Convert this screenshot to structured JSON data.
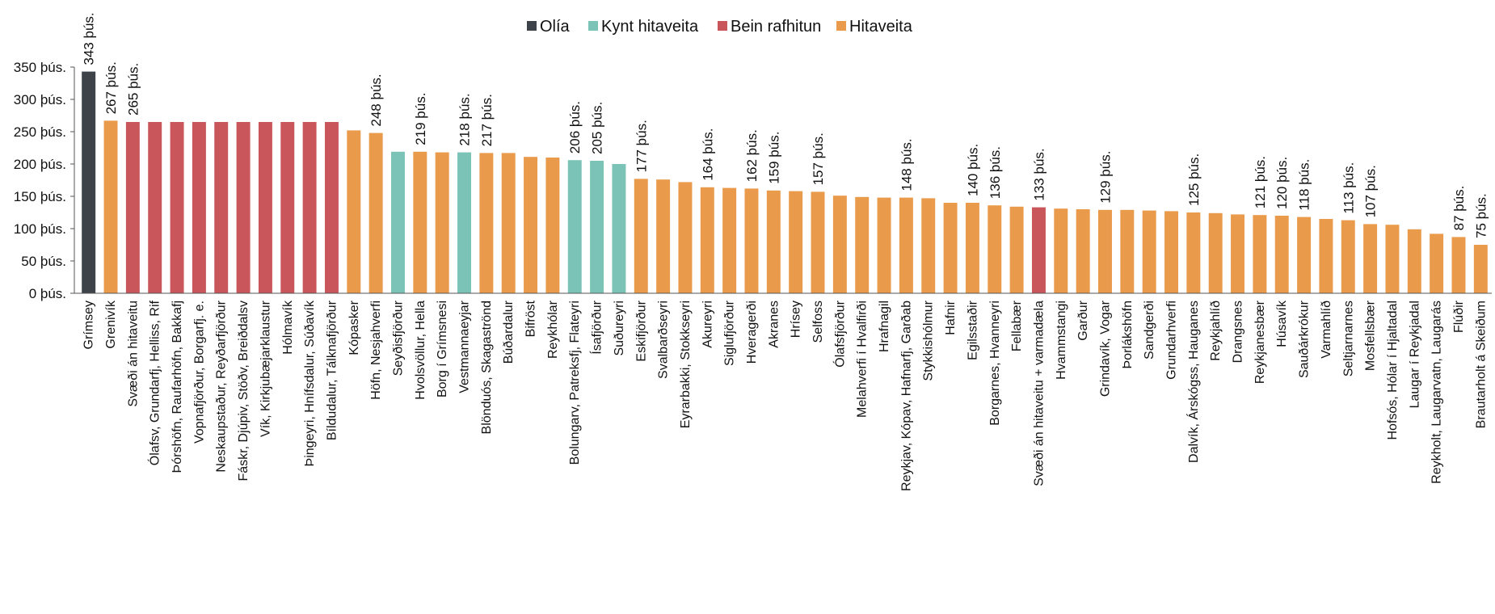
{
  "chart_data": {
    "type": "bar",
    "title": "",
    "xlabel": "",
    "ylabel": "",
    "ylim": [
      0,
      350000
    ],
    "yticks": [
      "0 þús.",
      "50 þús.",
      "100 þús.",
      "150 þús.",
      "200 þús.",
      "250 þús.",
      "300 þús.",
      "350 þús."
    ],
    "grid": false,
    "legend_position": "top-center",
    "legend": [
      {
        "key": "olia",
        "label": "Olía",
        "color": "#3d4349"
      },
      {
        "key": "kynt",
        "label": "Kynt hitaveita",
        "color": "#7cc3b7"
      },
      {
        "key": "bein",
        "label": "Bein rafhitun",
        "color": "#c9565a"
      },
      {
        "key": "hita",
        "label": "Hitaveita",
        "color": "#e99a4b"
      }
    ],
    "categories": [
      "Grímsey",
      "Grenivík",
      "Svæði án hitaveitu",
      "Ólafsv, Grundarfj, Helliss, Rif",
      "Þórshöfn, Raufarhöfn, Bakkafj",
      "Vopnafjörður, Borgarfj. e.",
      "Neskaupstaður, Reyðarfjörður",
      "Fáskr, Djúpiv, Stöðv, Breiðdalsv",
      "Vík, Kirkjubæjarklaustur",
      "Hólmavík",
      "Þingeyri, Hnífsdalur, Súðavík",
      "Bíldudalur, Tálknafjörður",
      "Kópasker",
      "Höfn, Nesjahverfi",
      "Seyðisfjörður",
      "Hvolsvöllur, Hella",
      "Borg í Grímsnesi",
      "Vestmannaeyjar",
      "Blönduós, Skagaströnd",
      "Búðardalur",
      "Bifröst",
      "Reykhólar",
      "Bolungarv, Patreksfj, Flateyri",
      "Ísafjörður",
      "Suðureyri",
      "Eskifjörður",
      "Svalbarðseyri",
      "Eyrarbakki, Stokkseyri",
      "Akureyri",
      "Siglufjörður",
      "Hveragerði",
      "Akranes",
      "Hrísey",
      "Selfoss",
      "Ólafsfjörður",
      "Melahverfi í Hvalfirði",
      "Hrafnagil",
      "Reykjav, Kópav, Hafnarfj, Garðab",
      "Stykkishólmur",
      "Hafnir",
      "Egilsstaðir",
      "Borgarnes, Hvanneyri",
      "Fellabær",
      "Svæði án hitaveitu + varmadæla",
      "Hvammstangi",
      "Garður",
      "Grindavík, Vogar",
      "Þorlákshöfn",
      "Sandgerði",
      "Grundarhverfi",
      "Dalvík, Árskógss, Hauganes",
      "Reykjahlíð",
      "Drangsnes",
      "Reykjanesbær",
      "Húsavík",
      "Sauðárkrókur",
      "Varmahlíð",
      "Seltjarnarnes",
      "Mosfellsbær",
      "Hofsós, Hólar í Hjaltadal",
      "Laugar í Reykjadal",
      "Reykholt, Laugarvatn, Laugarás",
      "Flúðir",
      "Brautarholt á Skeiðum"
    ],
    "values": [
      343000,
      267000,
      265000,
      265000,
      265000,
      265000,
      265000,
      265000,
      265000,
      265000,
      265000,
      265000,
      252000,
      248000,
      219000,
      219000,
      218000,
      218000,
      217000,
      217000,
      211000,
      210000,
      206000,
      205000,
      200000,
      177000,
      176000,
      172000,
      164000,
      163000,
      162000,
      159000,
      158000,
      157000,
      151000,
      149000,
      148000,
      148000,
      147000,
      140000,
      140000,
      136000,
      134000,
      133000,
      131000,
      130000,
      129000,
      129000,
      128000,
      127000,
      125000,
      124000,
      122000,
      121000,
      120000,
      118000,
      115000,
      113000,
      107000,
      106000,
      99000,
      92000,
      87000,
      75000
    ],
    "heating_type": [
      "olia",
      "hita",
      "bein",
      "bein",
      "bein",
      "bein",
      "bein",
      "bein",
      "bein",
      "bein",
      "bein",
      "bein",
      "hita",
      "hita",
      "kynt",
      "hita",
      "hita",
      "kynt",
      "hita",
      "hita",
      "hita",
      "hita",
      "kynt",
      "kynt",
      "kynt",
      "hita",
      "hita",
      "hita",
      "hita",
      "hita",
      "hita",
      "hita",
      "hita",
      "hita",
      "hita",
      "hita",
      "hita",
      "hita",
      "hita",
      "hita",
      "hita",
      "hita",
      "hita",
      "bein",
      "hita",
      "hita",
      "hita",
      "hita",
      "hita",
      "hita",
      "hita",
      "hita",
      "hita",
      "hita",
      "hita",
      "hita",
      "hita",
      "hita",
      "hita",
      "hita",
      "hita",
      "hita",
      "hita",
      "hita"
    ],
    "data_labels": [
      {
        "index": 0,
        "text": "343 þús."
      },
      {
        "index": 1,
        "text": "267 þús."
      },
      {
        "index": 2,
        "text": "265 þús."
      },
      {
        "index": 13,
        "text": "248 þús."
      },
      {
        "index": 15,
        "text": "219 þús."
      },
      {
        "index": 17,
        "text": "218 þús."
      },
      {
        "index": 18,
        "text": "217 þús."
      },
      {
        "index": 22,
        "text": "206 þús."
      },
      {
        "index": 23,
        "text": "205 þús."
      },
      {
        "index": 25,
        "text": "177 þús."
      },
      {
        "index": 28,
        "text": "164 þús."
      },
      {
        "index": 30,
        "text": "162 þús."
      },
      {
        "index": 31,
        "text": "159 þús."
      },
      {
        "index": 33,
        "text": "157 þús."
      },
      {
        "index": 37,
        "text": "148 þús."
      },
      {
        "index": 40,
        "text": "140 þús."
      },
      {
        "index": 41,
        "text": "136 þús."
      },
      {
        "index": 43,
        "text": "133 þús."
      },
      {
        "index": 46,
        "text": "129 þús."
      },
      {
        "index": 50,
        "text": "125 þús."
      },
      {
        "index": 53,
        "text": "121 þús."
      },
      {
        "index": 54,
        "text": "120 þús."
      },
      {
        "index": 55,
        "text": "118 þús."
      },
      {
        "index": 57,
        "text": "113 þús."
      },
      {
        "index": 58,
        "text": "107 þús."
      },
      {
        "index": 62,
        "text": "87 þús."
      },
      {
        "index": 63,
        "text": "75 þús."
      }
    ]
  }
}
